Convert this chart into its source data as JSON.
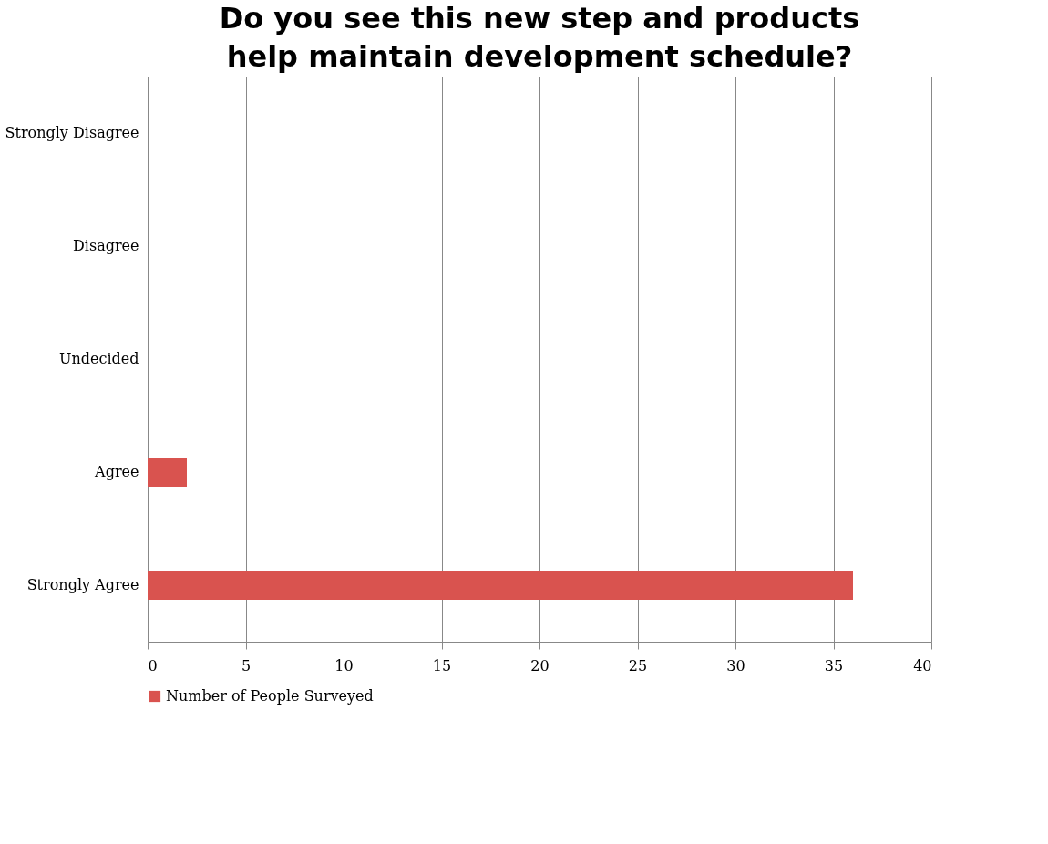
{
  "chart_data": {
    "type": "bar",
    "orientation": "horizontal",
    "title": "Do you see this new step and products help maintain development schedule?",
    "categories": [
      "Strongly Disagree",
      "Disagree",
      "Undecided",
      "Agree",
      "Strongly Agree"
    ],
    "series": [
      {
        "name": "Number of People Surveyed",
        "color": "#d9534f",
        "values": [
          0,
          0,
          0,
          2,
          36
        ]
      }
    ],
    "xlim": [
      0,
      40
    ],
    "xticks": [
      0,
      5,
      10,
      15,
      20,
      25,
      30,
      35,
      40
    ],
    "grid": "x",
    "legend": "bottom"
  }
}
